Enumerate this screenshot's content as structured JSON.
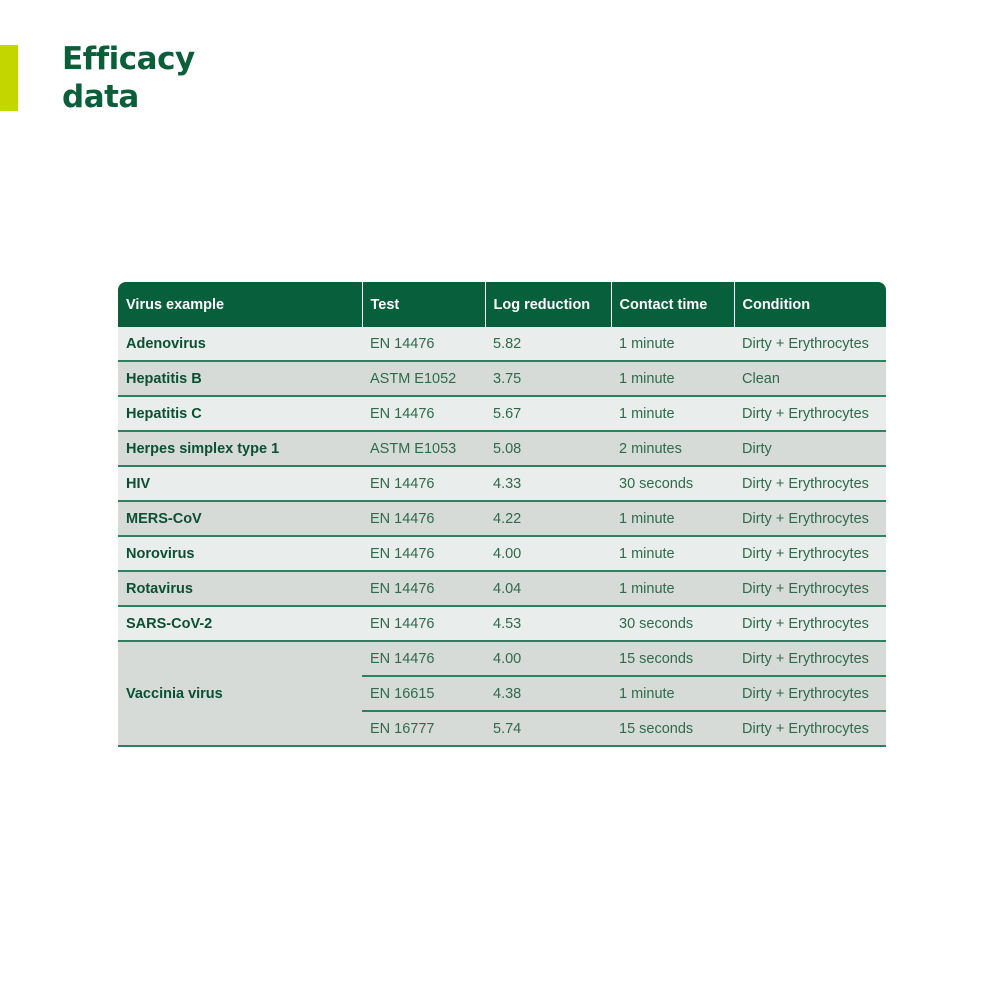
{
  "page": {
    "title": "Efficacy data"
  },
  "colors": {
    "brand_green": "#07603b",
    "accent_lime": "#c4d600",
    "row_light": "#e9edeb",
    "row_dark": "#d6dbd8"
  },
  "table": {
    "headers": [
      "Virus example",
      "Test",
      "Log reduction",
      "Contact time",
      "Condition"
    ],
    "rows": [
      {
        "virus": "Adenovirus",
        "tests": [
          [
            "EN 14476",
            "5.82",
            "1 minute",
            "Dirty + Erythrocytes"
          ]
        ]
      },
      {
        "virus": "Hepatitis B",
        "tests": [
          [
            "ASTM E1052",
            "3.75",
            "1 minute",
            "Clean"
          ]
        ]
      },
      {
        "virus": "Hepatitis C",
        "tests": [
          [
            "EN 14476",
            "5.67",
            "1 minute",
            "Dirty + Erythrocytes"
          ]
        ]
      },
      {
        "virus": "Herpes simplex type 1",
        "tests": [
          [
            "ASTM E1053",
            "5.08",
            "2 minutes",
            "Dirty"
          ]
        ]
      },
      {
        "virus": "HIV",
        "tests": [
          [
            "EN 14476",
            "4.33",
            "30 seconds",
            "Dirty + Erythrocytes"
          ]
        ]
      },
      {
        "virus": "MERS-CoV",
        "tests": [
          [
            "EN 14476",
            "4.22",
            "1 minute",
            "Dirty + Erythrocytes"
          ]
        ]
      },
      {
        "virus": "Norovirus",
        "tests": [
          [
            "EN 14476",
            "4.00",
            "1 minute",
            "Dirty + Erythrocytes"
          ]
        ]
      },
      {
        "virus": "Rotavirus",
        "tests": [
          [
            "EN 14476",
            "4.04",
            "1 minute",
            "Dirty + Erythrocytes"
          ]
        ]
      },
      {
        "virus": "SARS-CoV-2",
        "tests": [
          [
            "EN 14476",
            "4.53",
            "30 seconds",
            "Dirty + Erythrocytes"
          ]
        ]
      },
      {
        "virus": "Vaccinia virus",
        "tests": [
          [
            "EN 14476",
            "4.00",
            "15 seconds",
            "Dirty + Erythrocytes"
          ],
          [
            "EN 16615",
            "4.38",
            "1 minute",
            "Dirty + Erythrocytes"
          ],
          [
            "EN 16777",
            "5.74",
            "15 seconds",
            "Dirty + Erythrocytes"
          ]
        ]
      }
    ]
  }
}
